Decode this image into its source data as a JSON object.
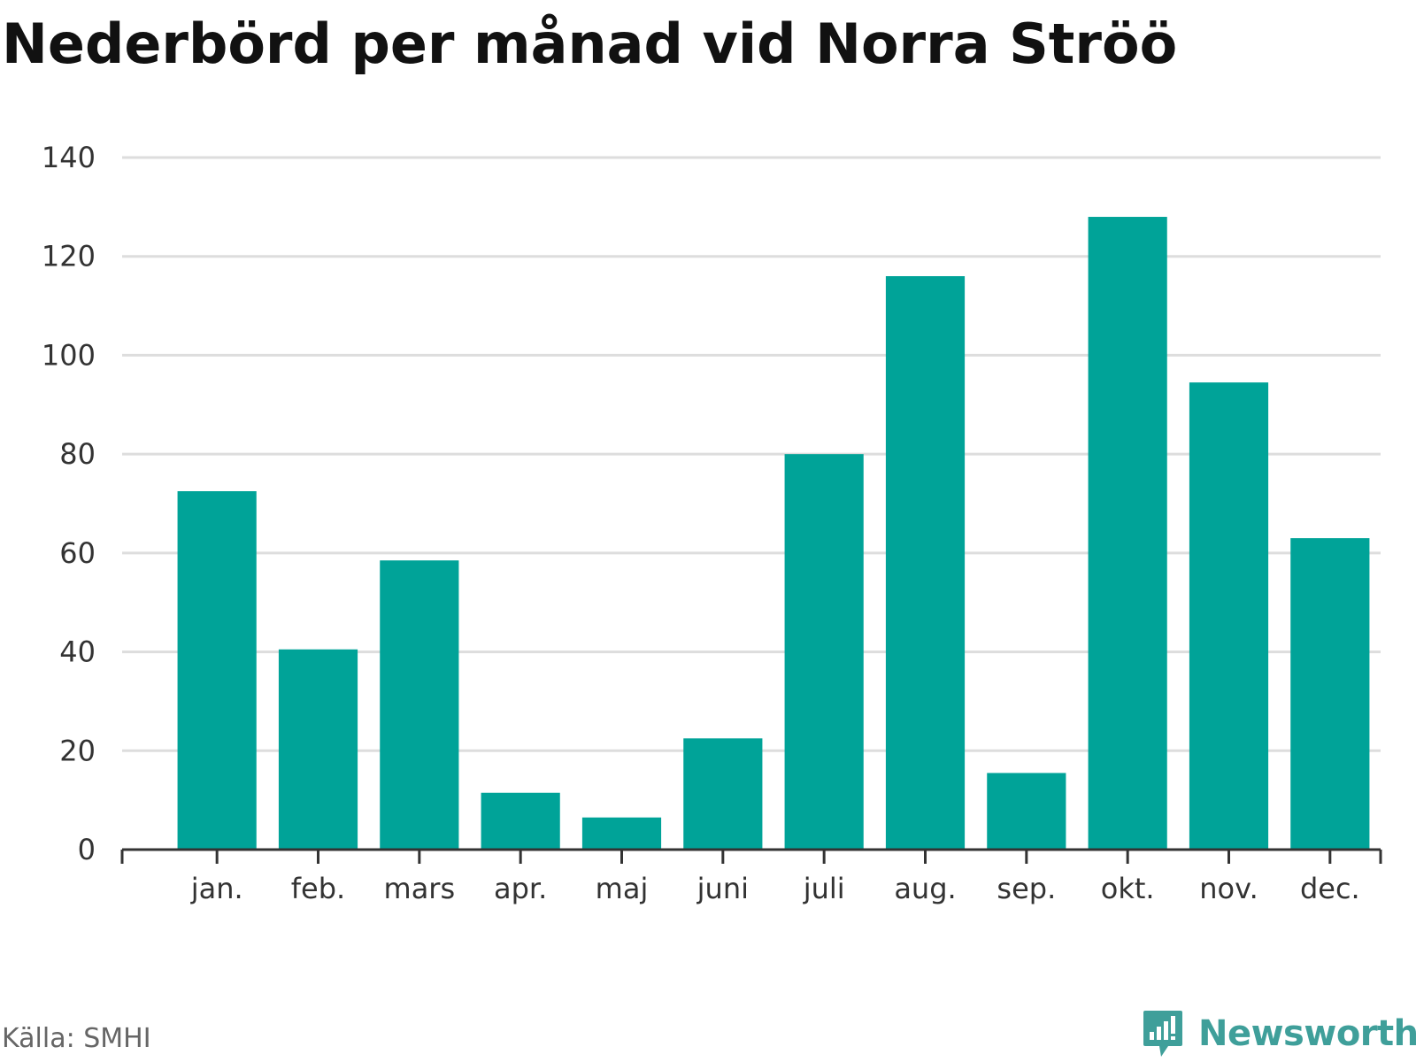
{
  "title": "Nederbörd per månad vid Norra Strӧӧ",
  "source": "Källa: SMHI",
  "brand": {
    "name": "Newsworthy",
    "icon": "newsworthy-logo-icon",
    "color": "#3f9f9a"
  },
  "colors": {
    "bar": "#00a398",
    "grid": "#dddddd",
    "axis": "#333333"
  },
  "chart_data": {
    "type": "bar",
    "title": "Nederbörd per månad vid Norra Strӧӧ",
    "xlabel": "",
    "ylabel": "",
    "categories": [
      "jan.",
      "feb.",
      "mars",
      "apr.",
      "maj",
      "juni",
      "juli",
      "aug.",
      "sep.",
      "okt.",
      "nov.",
      "dec."
    ],
    "values": [
      72.5,
      40.5,
      58.5,
      11.5,
      6.5,
      22.5,
      80,
      116,
      15.5,
      128,
      94.5,
      63
    ],
    "ylim": [
      0,
      140
    ],
    "yticks": [
      0,
      20,
      40,
      60,
      80,
      100,
      120,
      140
    ],
    "grid": true,
    "legend": "none"
  }
}
